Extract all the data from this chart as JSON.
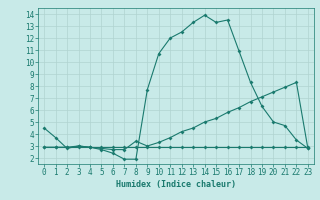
{
  "xlabel": "Humidex (Indice chaleur)",
  "x_values": [
    0,
    1,
    2,
    3,
    4,
    5,
    6,
    7,
    8,
    9,
    10,
    11,
    12,
    13,
    14,
    15,
    16,
    17,
    18,
    19,
    20,
    21,
    22,
    23
  ],
  "line1": [
    4.5,
    3.7,
    2.8,
    3.0,
    2.9,
    2.7,
    2.4,
    1.9,
    1.9,
    7.7,
    10.7,
    12.0,
    12.5,
    13.3,
    13.9,
    13.3,
    13.5,
    10.9,
    8.3,
    6.3,
    5.0,
    4.7,
    3.5,
    2.8
  ],
  "line2": [
    2.9,
    2.9,
    2.9,
    3.0,
    2.9,
    2.8,
    2.7,
    2.7,
    3.4,
    3.0,
    3.3,
    3.7,
    4.2,
    4.5,
    5.0,
    5.3,
    5.8,
    6.2,
    6.7,
    7.1,
    7.5,
    7.9,
    8.3,
    2.8
  ],
  "line3": [
    2.9,
    2.9,
    2.9,
    2.9,
    2.9,
    2.9,
    2.9,
    2.9,
    2.9,
    2.9,
    2.9,
    2.9,
    2.9,
    2.9,
    2.9,
    2.9,
    2.9,
    2.9,
    2.9,
    2.9,
    2.9,
    2.9,
    2.9,
    2.9
  ],
  "line_color": "#1a7a6e",
  "bg_color": "#c8eae8",
  "grid_color": "#b0d4d0",
  "ylim": [
    1.5,
    14.5
  ],
  "xlim": [
    -0.5,
    23.5
  ],
  "yticks": [
    2,
    3,
    4,
    5,
    6,
    7,
    8,
    9,
    10,
    11,
    12,
    13,
    14
  ],
  "xticks": [
    0,
    1,
    2,
    3,
    4,
    5,
    6,
    7,
    8,
    9,
    10,
    11,
    12,
    13,
    14,
    15,
    16,
    17,
    18,
    19,
    20,
    21,
    22,
    23
  ],
  "xlabel_fontsize": 6,
  "tick_fontsize": 5.5
}
